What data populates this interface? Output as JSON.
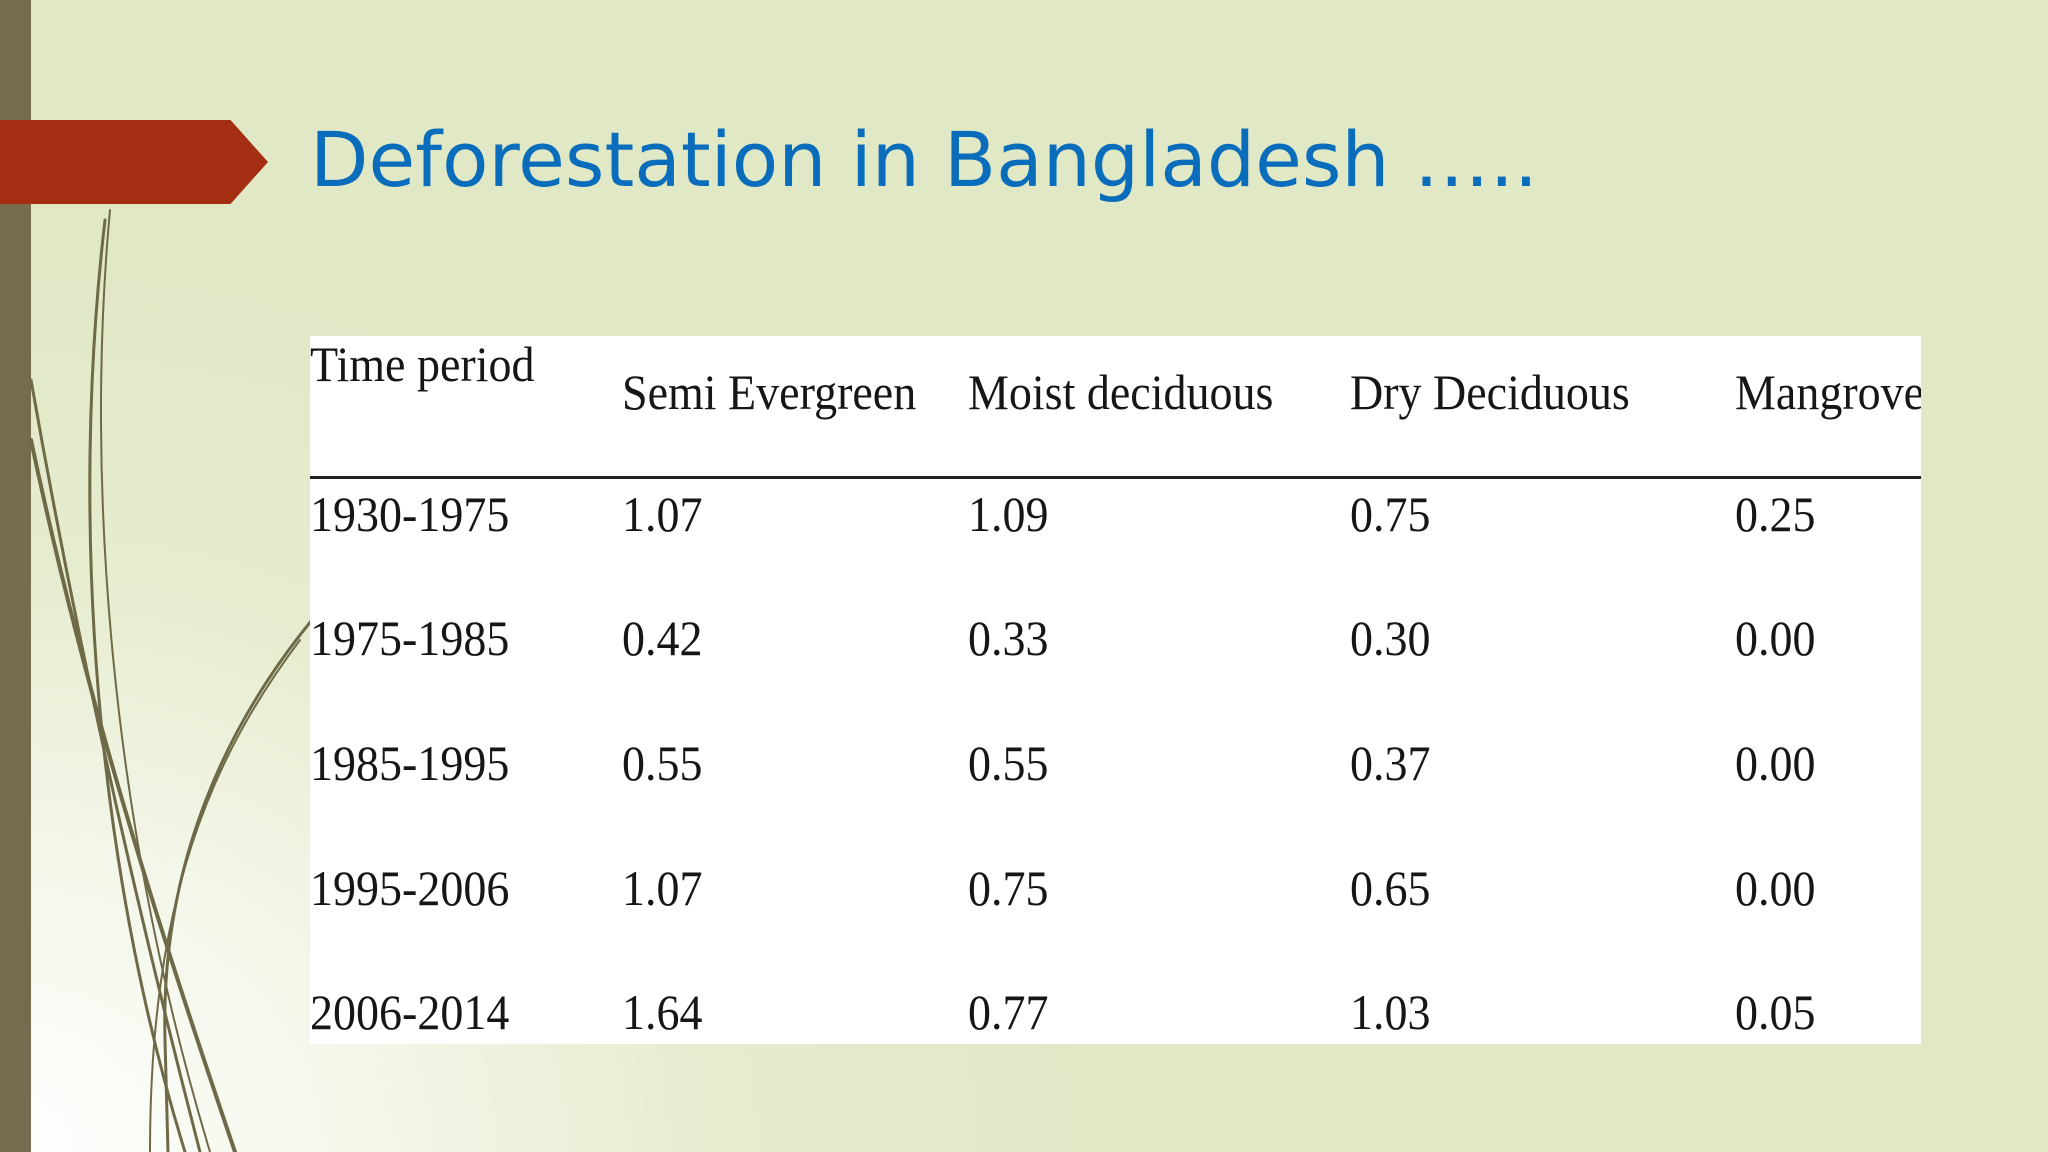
{
  "slide": {
    "title": "Deforestation in Bangladesh ….."
  },
  "table": {
    "headers": [
      "Time period",
      "Semi Evergreen",
      "Moist deciduous",
      "Dry Deciduous",
      "Mangrove"
    ],
    "rows": [
      [
        "1930-1975",
        "1.07",
        "1.09",
        "0.75",
        "0.25"
      ],
      [
        "1975-1985",
        "0.42",
        "0.33",
        "0.30",
        "0.00"
      ],
      [
        "1985-1995",
        "0.55",
        "0.55",
        "0.37",
        "0.00"
      ],
      [
        "1995-2006",
        "1.07",
        "0.75",
        "0.65",
        "0.00"
      ],
      [
        "2006-2014",
        "1.64",
        "0.77",
        "1.03",
        "0.05"
      ]
    ]
  },
  "colors": {
    "title": "#0a6dbb",
    "accent_arrow": "#a32e12",
    "left_bar": "#766b4e",
    "background": "#e1e8c6"
  }
}
